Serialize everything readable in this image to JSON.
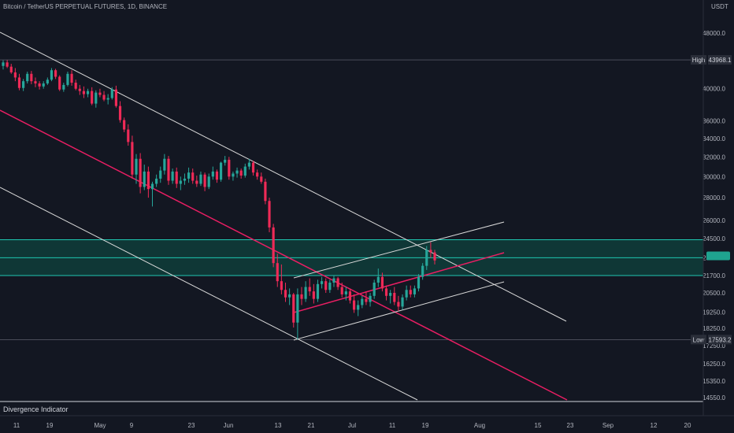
{
  "header": {
    "title": "Bitcoin / TetherUS PERPETUAL FUTURES, 1D, BINANCE",
    "currency": "USDT"
  },
  "indicator_pane": {
    "label": "Divergence Indicator"
  },
  "colors": {
    "background": "#131722",
    "up_candle": "#26a69a",
    "down_candle": "#ef2a57",
    "channel_line": "#d9d9d9",
    "midline": "#e91e63",
    "zone_fill": "#0f3d3a",
    "zone_border": "#1fc7b1"
  },
  "chart_data": {
    "type": "candlestick",
    "title": "Bitcoin / TetherUS PERPETUAL FUTURES, 1D, BINANCE",
    "y_unit": "USDT",
    "y_scale": "log",
    "y_ticks": [
      48000,
      40000,
      36000,
      34000,
      32000,
      30000,
      28000,
      26000,
      24500,
      23000,
      21700,
      20500,
      19250,
      18250,
      17250,
      16250,
      15350,
      14550
    ],
    "x_ticks": [
      "11",
      "19",
      "May",
      "9",
      "23",
      "Jun",
      "13",
      "21",
      "Jul",
      "11",
      "19",
      "Aug",
      "15",
      "23",
      "Sep",
      "12",
      "20"
    ],
    "price_tags": [
      {
        "label": "High",
        "value": "43968.1"
      },
      {
        "label": "Low",
        "value": "17593.2"
      }
    ],
    "zone": {
      "low": 21700,
      "high": 24400,
      "mid": 23000
    },
    "candles": [
      [
        43100,
        43900,
        42600,
        43600
      ],
      [
        43600,
        43950,
        42800,
        43000
      ],
      [
        43000,
        43400,
        42000,
        42200
      ],
      [
        42200,
        42800,
        41000,
        41500
      ],
      [
        41500,
        42000,
        39800,
        40100
      ],
      [
        40100,
        41300,
        39700,
        41000
      ],
      [
        41000,
        42300,
        40700,
        42000
      ],
      [
        42000,
        42400,
        40600,
        41000
      ],
      [
        41000,
        41500,
        40200,
        40700
      ],
      [
        40700,
        41000,
        39900,
        40300
      ],
      [
        40300,
        41000,
        40000,
        40700
      ],
      [
        40700,
        41500,
        40500,
        41200
      ],
      [
        41200,
        42800,
        41000,
        42500
      ],
      [
        42500,
        42700,
        41300,
        41600
      ],
      [
        41600,
        41800,
        39700,
        39900
      ],
      [
        39900,
        40800,
        39600,
        40500
      ],
      [
        40500,
        42300,
        40300,
        42000
      ],
      [
        42000,
        42500,
        40400,
        40800
      ],
      [
        40800,
        41200,
        39800,
        40000
      ],
      [
        40000,
        40500,
        39200,
        39700
      ],
      [
        39700,
        40300,
        38800,
        39300
      ],
      [
        39300,
        40000,
        38900,
        39700
      ],
      [
        39700,
        40200,
        37900,
        38100
      ],
      [
        38100,
        39800,
        37600,
        39500
      ],
      [
        39500,
        40000,
        38900,
        39200
      ],
      [
        39200,
        39700,
        38400,
        38600
      ],
      [
        38600,
        39300,
        38000,
        38800
      ],
      [
        38800,
        40200,
        38600,
        39900
      ],
      [
        39900,
        40400,
        37600,
        37800
      ],
      [
        37800,
        38400,
        35800,
        36100
      ],
      [
        36100,
        36400,
        34700,
        35000
      ],
      [
        35000,
        35600,
        33200,
        33600
      ],
      [
        33600,
        34300,
        29800,
        30200
      ],
      [
        30200,
        32300,
        29300,
        31800
      ],
      [
        31800,
        32400,
        28400,
        29000
      ],
      [
        29000,
        31200,
        28700,
        30500
      ],
      [
        30500,
        31000,
        28000,
        28800
      ],
      [
        28800,
        29500,
        27200,
        29300
      ],
      [
        29300,
        30200,
        29000,
        29800
      ],
      [
        29800,
        31000,
        29400,
        30600
      ],
      [
        30600,
        32300,
        30200,
        31800
      ],
      [
        31800,
        32100,
        29200,
        29600
      ],
      [
        29600,
        30800,
        29300,
        30500
      ],
      [
        30500,
        30900,
        28900,
        29300
      ],
      [
        29300,
        30000,
        28700,
        29600
      ],
      [
        29600,
        30300,
        29200,
        29800
      ],
      [
        29800,
        30900,
        29400,
        30400
      ],
      [
        30400,
        30800,
        29300,
        29600
      ],
      [
        29600,
        30100,
        29000,
        29300
      ],
      [
        29300,
        30500,
        29100,
        30200
      ],
      [
        30200,
        30400,
        28600,
        29000
      ],
      [
        29000,
        30300,
        28800,
        30000
      ],
      [
        30000,
        31000,
        29700,
        30500
      ],
      [
        30500,
        30700,
        29400,
        29700
      ],
      [
        29700,
        31500,
        29500,
        31400
      ],
      [
        31400,
        32100,
        31100,
        31700
      ],
      [
        31700,
        32000,
        29700,
        30000
      ],
      [
        30000,
        30500,
        29600,
        30300
      ],
      [
        30300,
        30900,
        29900,
        30600
      ],
      [
        30600,
        30800,
        29800,
        30100
      ],
      [
        30100,
        31300,
        29900,
        31000
      ],
      [
        31000,
        31800,
        30700,
        31400
      ],
      [
        31400,
        31600,
        30100,
        30400
      ],
      [
        30400,
        30700,
        29700,
        30000
      ],
      [
        30000,
        30400,
        29300,
        29500
      ],
      [
        29500,
        29800,
        27400,
        27700
      ],
      [
        27700,
        28000,
        25000,
        25400
      ],
      [
        25400,
        25700,
        22300,
        22600
      ],
      [
        22600,
        23300,
        20900,
        21300
      ],
      [
        21300,
        22500,
        20400,
        20700
      ],
      [
        20700,
        21200,
        19900,
        20200
      ],
      [
        20200,
        20800,
        19700,
        20400
      ],
      [
        20400,
        20500,
        18300,
        18600
      ],
      [
        18600,
        20800,
        17600,
        20400
      ],
      [
        20400,
        20900,
        19700,
        20100
      ],
      [
        20100,
        21300,
        19900,
        20900
      ],
      [
        20900,
        21500,
        20300,
        20600
      ],
      [
        20600,
        21100,
        19800,
        20100
      ],
      [
        20100,
        21400,
        19900,
        21100
      ],
      [
        21100,
        21600,
        20800,
        21300
      ],
      [
        21300,
        21500,
        20500,
        20700
      ],
      [
        20700,
        21400,
        20500,
        21200
      ],
      [
        21200,
        21700,
        20900,
        21500
      ],
      [
        21500,
        21600,
        20700,
        20900
      ],
      [
        20900,
        21200,
        20200,
        20400
      ],
      [
        20400,
        20900,
        20000,
        20600
      ],
      [
        20600,
        20800,
        19800,
        20000
      ],
      [
        20000,
        20400,
        19200,
        19400
      ],
      [
        19400,
        20000,
        19000,
        19700
      ],
      [
        19700,
        20300,
        19500,
        20100
      ],
      [
        20100,
        20600,
        19700,
        19900
      ],
      [
        19900,
        20500,
        19600,
        20300
      ],
      [
        20300,
        21400,
        20100,
        21200
      ],
      [
        21200,
        22200,
        20900,
        21600
      ],
      [
        21600,
        21900,
        20600,
        20800
      ],
      [
        20800,
        21000,
        20000,
        20300
      ],
      [
        20300,
        20700,
        19800,
        20500
      ],
      [
        20500,
        20900,
        19700,
        19900
      ],
      [
        19900,
        20300,
        19300,
        19600
      ],
      [
        19600,
        20400,
        19400,
        20200
      ],
      [
        20200,
        21000,
        20000,
        20700
      ],
      [
        20700,
        21000,
        20200,
        20400
      ],
      [
        20400,
        21000,
        20200,
        20800
      ],
      [
        20800,
        21800,
        20600,
        21600
      ],
      [
        21600,
        22600,
        21400,
        22400
      ],
      [
        22400,
        23900,
        22100,
        23600
      ],
      [
        23600,
        24200,
        23000,
        23400
      ],
      [
        23400,
        23600,
        22500,
        22800
      ]
    ],
    "drawings": [
      {
        "type": "trendline",
        "role": "upper-channel"
      },
      {
        "type": "trendline",
        "role": "midline"
      },
      {
        "type": "trendline",
        "role": "lower-channel"
      },
      {
        "type": "parallel-channel",
        "role": "rising-channel"
      }
    ]
  }
}
